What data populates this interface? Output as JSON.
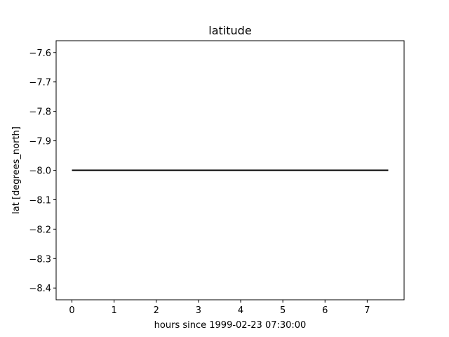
{
  "chart_data": {
    "type": "line",
    "title": "latitude",
    "xlabel": "hours since 1999-02-23 07:30:00",
    "ylabel": "lat [degrees_north]",
    "xlim": [
      -0.375,
      7.875
    ],
    "ylim": [
      -8.44,
      -7.56
    ],
    "xticks": [
      0,
      1,
      2,
      3,
      4,
      5,
      6,
      7
    ],
    "xtick_labels": [
      "0",
      "1",
      "2",
      "3",
      "4",
      "5",
      "6",
      "7"
    ],
    "yticks": [
      -7.6,
      -7.7,
      -7.8,
      -7.9,
      -8.0,
      -8.1,
      -8.2,
      -8.3,
      -8.4
    ],
    "ytick_labels": [
      "−7.6",
      "−7.7",
      "−7.8",
      "−7.9",
      "−8.0",
      "−8.1",
      "−8.2",
      "−8.3",
      "−8.4"
    ],
    "grid": false,
    "series": [
      {
        "color": "#000000",
        "x": [
          0,
          7.5
        ],
        "y": [
          -8.0,
          -8.0
        ]
      }
    ]
  }
}
